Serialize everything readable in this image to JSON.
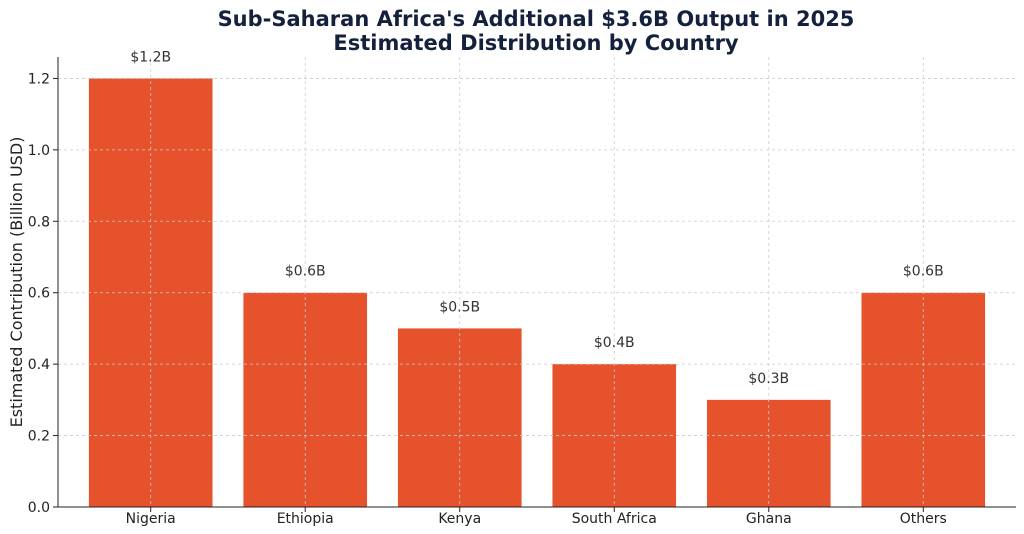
{
  "chart_data": {
    "type": "bar",
    "title": "Sub-Saharan Africa's Additional $3.6B Output in 2025",
    "subtitle": "Estimated Distribution by Country",
    "xlabel": "",
    "ylabel": "Estimated Contribution (Billion USD)",
    "categories": [
      "Nigeria",
      "Ethiopia",
      "Kenya",
      "South Africa",
      "Ghana",
      "Others"
    ],
    "values": [
      1.2,
      0.6,
      0.5,
      0.4,
      0.3,
      0.6
    ],
    "data_labels": [
      "$1.2B",
      "$0.6B",
      "$0.5B",
      "$0.4B",
      "$0.3B",
      "$0.6B"
    ],
    "ylim": [
      0,
      1.26
    ],
    "yticks": [
      0.0,
      0.2,
      0.4,
      0.6,
      0.8,
      1.0,
      1.2
    ],
    "ytick_labels": [
      "0.0",
      "0.2",
      "0.4",
      "0.6",
      "0.8",
      "1.0",
      "1.2"
    ],
    "grid": true,
    "bar_color": "#e5522b",
    "grid_color": "#cccccc",
    "title_color": "#14213d"
  }
}
